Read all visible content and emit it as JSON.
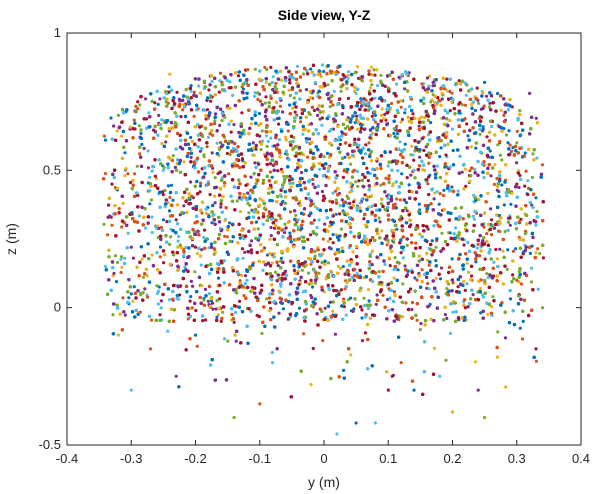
{
  "chart_data": {
    "type": "scatter",
    "title": "Side view, Y-Z",
    "xlabel": "y (m)",
    "ylabel": "z (m)",
    "xlim": [
      -0.4,
      0.4
    ],
    "ylim": [
      -0.5,
      1
    ],
    "x_ticks": [
      -0.4,
      -0.3,
      -0.2,
      -0.1,
      0,
      0.1,
      0.2,
      0.3,
      0.4
    ],
    "x_tick_labels": [
      "-0.4",
      "-0.3",
      "-0.2",
      "-0.1",
      "0",
      "0.1",
      "0.2",
      "0.3",
      "0.4"
    ],
    "y_ticks": [
      -0.5,
      0,
      0.5,
      1
    ],
    "y_tick_labels": [
      "-0.5",
      "0",
      "0.5",
      "1"
    ],
    "grid": false,
    "legend": "none",
    "colors": [
      "#0072BD",
      "#D95319",
      "#EDB120",
      "#7E2F8E",
      "#77AC30",
      "#4DBEEE",
      "#A2142F"
    ],
    "point_cloud": {
      "description_shape": "cylinder",
      "radius": 0.345,
      "z_bottom": -0.45,
      "z_top_center": 0.885,
      "z_top_edge": 0.62
    },
    "series": [
      {
        "color": "#0072BD",
        "points": [
          [
            -0.34,
            0.61
          ],
          [
            -0.25,
            0.32
          ],
          [
            -0.12,
            0.78
          ],
          [
            0.03,
            0.15
          ],
          [
            0.18,
            0.55
          ],
          [
            0.31,
            -0.05
          ],
          [
            0.05,
            -0.42
          ],
          [
            -0.2,
            -0.1
          ],
          [
            0.25,
            0.82
          ],
          [
            -0.05,
            0.47
          ],
          [
            0.14,
            -0.3
          ],
          [
            -0.3,
            0.05
          ],
          [
            0.33,
            0.4
          ],
          [
            -0.15,
            0.2
          ],
          [
            0.08,
            0.7
          ]
        ]
      },
      {
        "color": "#D95319",
        "points": [
          [
            -0.33,
            0.3
          ],
          [
            -0.22,
            0.72
          ],
          [
            -0.08,
            0.05
          ],
          [
            0.07,
            0.6
          ],
          [
            0.21,
            0.18
          ],
          [
            0.34,
            0.52
          ],
          [
            -0.1,
            -0.35
          ],
          [
            0.12,
            -0.2
          ],
          [
            -0.27,
            -0.15
          ],
          [
            0.02,
            0.86
          ],
          [
            0.28,
            0.7
          ],
          [
            -0.18,
            0.45
          ],
          [
            0.16,
            0.35
          ],
          [
            -0.04,
            0.25
          ],
          [
            0.3,
            0.1
          ]
        ]
      },
      {
        "color": "#EDB120",
        "points": [
          [
            -0.31,
            0.48
          ],
          [
            -0.19,
            0.08
          ],
          [
            -0.06,
            0.62
          ],
          [
            0.09,
            0.28
          ],
          [
            0.23,
            0.74
          ],
          [
            0.33,
            0.2
          ],
          [
            -0.02,
            -0.28
          ],
          [
            0.2,
            -0.38
          ],
          [
            -0.24,
            0.85
          ],
          [
            0.11,
            0.05
          ],
          [
            -0.13,
            0.35
          ],
          [
            0.27,
            -0.18
          ],
          [
            -0.32,
            -0.1
          ],
          [
            0.04,
            0.42
          ],
          [
            -0.09,
            0.82
          ]
        ]
      },
      {
        "color": "#7E2F8E",
        "points": [
          [
            -0.28,
            0.58
          ],
          [
            -0.16,
            0.28
          ],
          [
            -0.01,
            0.7
          ],
          [
            0.13,
            0.12
          ],
          [
            0.26,
            0.48
          ],
          [
            0.32,
            0.78
          ],
          [
            -0.23,
            -0.25
          ],
          [
            0.06,
            -0.12
          ],
          [
            0.24,
            -0.3
          ],
          [
            -0.11,
            0.6
          ],
          [
            0.17,
            0.82
          ],
          [
            -0.3,
            0.22
          ],
          [
            0.01,
            0.02
          ],
          [
            0.29,
            0.3
          ],
          [
            -0.07,
            -0.02
          ]
        ]
      },
      {
        "color": "#77AC30",
        "points": [
          [
            -0.32,
            0.7
          ],
          [
            -0.21,
            0.4
          ],
          [
            -0.03,
            0.15
          ],
          [
            0.1,
            0.8
          ],
          [
            0.22,
            0.3
          ],
          [
            0.34,
            0.0
          ],
          [
            -0.14,
            -0.4
          ],
          [
            0.15,
            -0.08
          ],
          [
            -0.26,
            0.08
          ],
          [
            0.0,
            0.55
          ],
          [
            0.3,
            0.6
          ],
          [
            -0.17,
            0.68
          ],
          [
            0.19,
            0.05
          ],
          [
            -0.06,
            0.38
          ],
          [
            0.25,
            -0.4
          ]
        ]
      },
      {
        "color": "#4DBEEE",
        "points": [
          [
            -0.3,
            -0.3
          ],
          [
            -0.18,
            0.62
          ],
          [
            -0.04,
            0.32
          ],
          [
            0.08,
            -0.42
          ],
          [
            0.2,
            0.65
          ],
          [
            0.33,
            0.3
          ],
          [
            -0.12,
            0.1
          ],
          [
            0.14,
            0.5
          ],
          [
            -0.25,
            0.5
          ],
          [
            0.05,
            0.78
          ],
          [
            0.27,
            0.15
          ],
          [
            -0.08,
            -0.2
          ],
          [
            0.18,
            -0.25
          ],
          [
            -0.34,
            0.15
          ],
          [
            0.02,
            -0.46
          ]
        ]
      },
      {
        "color": "#A2142F",
        "points": [
          [
            -0.33,
            0.45
          ],
          [
            -0.2,
            0.22
          ],
          [
            -0.09,
            0.72
          ],
          [
            0.04,
            0.38
          ],
          [
            0.16,
            0.7
          ],
          [
            0.3,
            0.45
          ],
          [
            -0.16,
            -0.05
          ],
          [
            0.1,
            -0.3
          ],
          [
            -0.29,
            0.75
          ],
          [
            0.22,
            0.0
          ],
          [
            -0.02,
            0.1
          ],
          [
            0.33,
            -0.15
          ],
          [
            0.12,
            0.2
          ],
          [
            -0.23,
            0.32
          ],
          [
            0.07,
            0.85
          ]
        ]
      }
    ]
  }
}
